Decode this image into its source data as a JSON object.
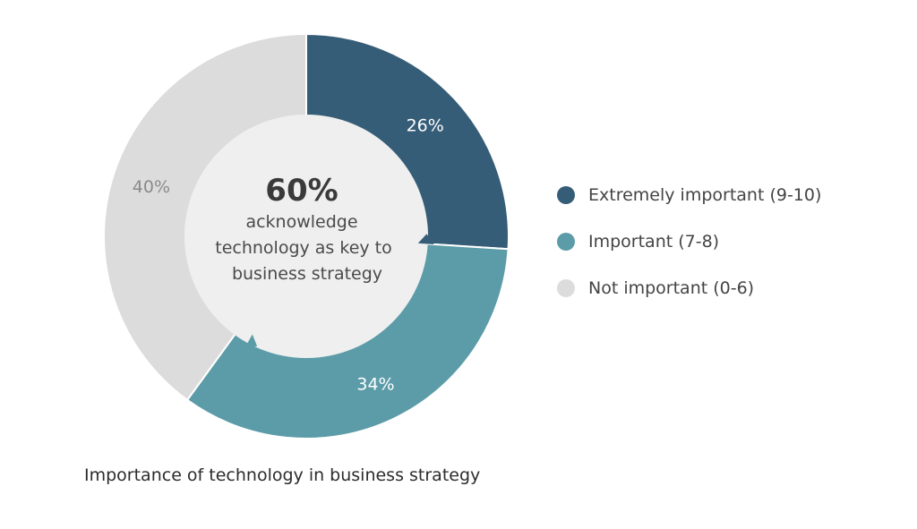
{
  "chart_data": {
    "type": "pie",
    "categories": [
      "Extremely important (9-10)",
      "Important (7-8)",
      "Not important (0-6)"
    ],
    "values": [
      26,
      34,
      40
    ],
    "value_labels": [
      "26%",
      "34%",
      "40%"
    ],
    "colors": [
      "#365d77",
      "#5b9ca8",
      "#dcdcdc"
    ],
    "label_colors": [
      "#ffffff",
      "#ffffff",
      "#8a8a8a"
    ],
    "center": {
      "value": "60%",
      "lines": [
        "acknowledge",
        "technology as key to",
        "business strategy"
      ]
    },
    "caption": "Importance of technology in business strategy",
    "legend_position": "right"
  }
}
